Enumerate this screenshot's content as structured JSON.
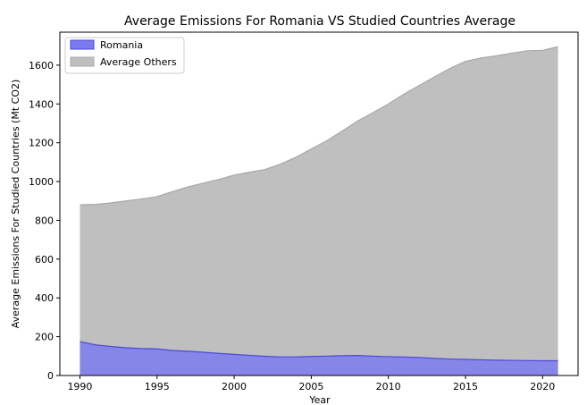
{
  "chart_data": {
    "type": "area",
    "title": "Average Emissions For Romania VS Studied Countries Average",
    "xlabel": "Year",
    "ylabel": "Average Emissions For Studied Countries (Mt CO2)",
    "xlim": [
      1988.7,
      2022.3
    ],
    "ylim": [
      0,
      1770
    ],
    "xticks": [
      1990,
      1995,
      2000,
      2005,
      2010,
      2015,
      2020
    ],
    "yticks": [
      0,
      200,
      400,
      600,
      800,
      1000,
      1200,
      1400,
      1600
    ],
    "grid": false,
    "legend_position": "top-left",
    "x": [
      1990,
      1991,
      1992,
      1993,
      1994,
      1995,
      1996,
      1997,
      1998,
      1999,
      2000,
      2001,
      2002,
      2003,
      2004,
      2005,
      2006,
      2007,
      2008,
      2009,
      2010,
      2011,
      2012,
      2013,
      2014,
      2015,
      2016,
      2017,
      2018,
      2019,
      2020,
      2021
    ],
    "series": [
      {
        "name": "Romania",
        "color": "#7b7bf0",
        "values": [
          175,
          158,
          150,
          143,
          139,
          137,
          129,
          125,
          120,
          114,
          109,
          104,
          99,
          96,
          96,
          98,
          100,
          102,
          103,
          100,
          97,
          95,
          93,
          88,
          85,
          83,
          81,
          79,
          78,
          77,
          76,
          76
        ]
      },
      {
        "name": "Average Others",
        "color": "#bfbfbf",
        "values": [
          880,
          882,
          890,
          900,
          910,
          922,
          948,
          972,
          992,
          1011,
          1033,
          1048,
          1062,
          1090,
          1125,
          1168,
          1210,
          1260,
          1312,
          1355,
          1400,
          1450,
          1495,
          1540,
          1583,
          1620,
          1637,
          1648,
          1662,
          1674,
          1676,
          1695
        ]
      }
    ]
  }
}
